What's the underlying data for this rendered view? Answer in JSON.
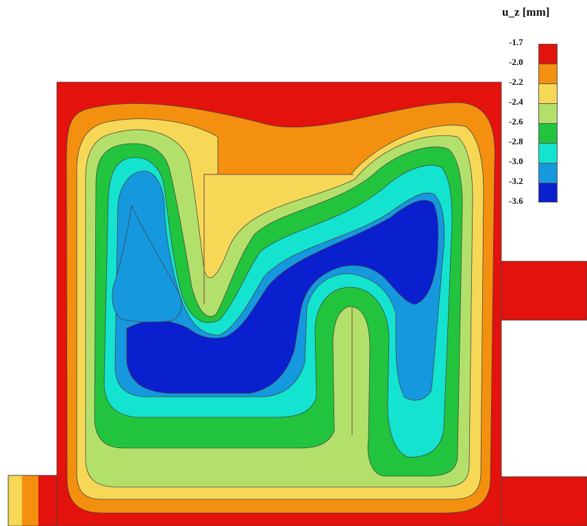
{
  "legend": {
    "title": "u_z [mm]",
    "labels": [
      "-1.7",
      "-2.0",
      "-2.2",
      "-2.4",
      "-2.6",
      "-2.8",
      "-3.0",
      "-3.2",
      "-3.6"
    ]
  },
  "colors": {
    "band_1": "#e3120c",
    "band_2": "#f4900f",
    "band_3": "#f6d856",
    "band_4": "#b3e06a",
    "band_5": "#22c43e",
    "band_6": "#13e3cf",
    "band_7": "#1598de",
    "band_8": "#0a1fce",
    "stroke": "#444444",
    "wall_line": "#8a5a4a"
  }
}
